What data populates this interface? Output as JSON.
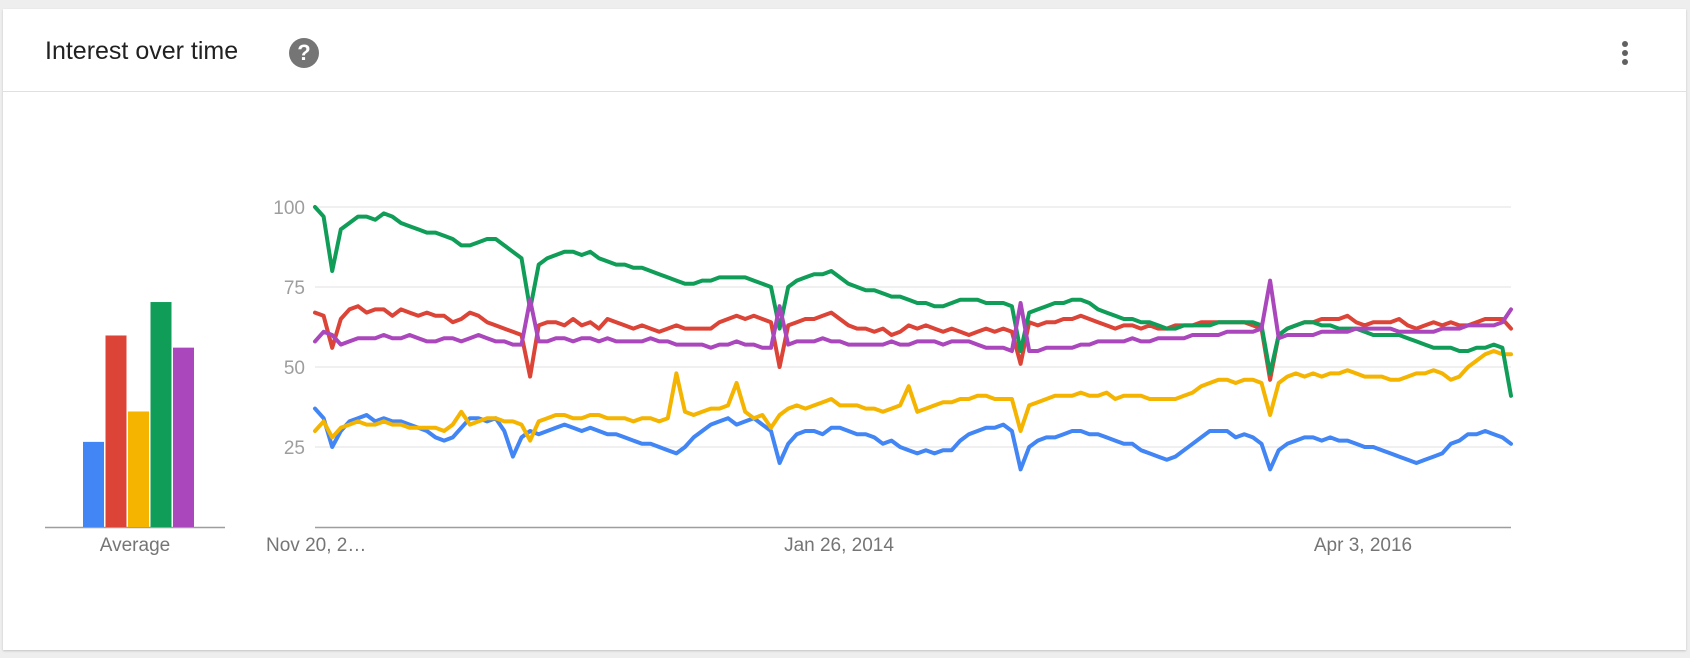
{
  "card": {
    "title": "Interest over time",
    "help_icon_glyph": "?",
    "help_icon": "help-circle-icon",
    "menu_icon": "more-vert-icon"
  },
  "average_chart": {
    "type": "bar",
    "label": "Average",
    "values": [
      28,
      63,
      38,
      74,
      59
    ],
    "colors": [
      "#4285f4",
      "#db4437",
      "#f4b400",
      "#0f9d58",
      "#ab47bc"
    ]
  },
  "chart_data": {
    "type": "line",
    "title": "",
    "xlabel": "",
    "ylabel": "",
    "ylim": [
      0,
      100
    ],
    "yticks": [
      25,
      50,
      75,
      100
    ],
    "x_tick_labels": [
      "Nov 20, 2…",
      "Jan 26, 2014",
      "Apr 3, 2016"
    ],
    "grid": true,
    "series": [
      {
        "color": "#4285f4",
        "values": [
          37,
          34,
          25,
          30,
          33,
          34,
          35,
          33,
          34,
          33,
          33,
          32,
          31,
          30,
          28,
          27,
          28,
          31,
          34,
          34,
          33,
          34,
          30,
          22,
          28,
          30,
          29,
          30,
          31,
          32,
          31,
          30,
          31,
          30,
          29,
          29,
          28,
          27,
          26,
          26,
          25,
          24,
          23,
          25,
          28,
          30,
          32,
          33,
          34,
          32,
          33,
          34,
          32,
          30,
          20,
          26,
          29,
          30,
          30,
          29,
          31,
          31,
          30,
          29,
          29,
          28,
          26,
          27,
          25,
          24,
          23,
          24,
          23,
          24,
          24,
          27,
          29,
          30,
          31,
          31,
          32,
          30,
          18,
          25,
          27,
          28,
          28,
          29,
          30,
          30,
          29,
          29,
          28,
          27,
          26,
          26,
          24,
          23,
          22,
          21,
          22,
          24,
          26,
          28,
          30,
          30,
          30,
          28,
          29,
          28,
          26,
          18,
          24,
          26,
          27,
          28,
          28,
          27,
          28,
          27,
          27,
          26,
          25,
          25,
          24,
          23,
          22,
          21,
          20,
          21,
          22,
          23,
          26,
          27,
          29,
          29,
          30,
          29,
          28,
          26
        ]
      },
      {
        "color": "#db4437",
        "values": [
          67,
          66,
          56,
          65,
          68,
          69,
          67,
          68,
          68,
          66,
          68,
          67,
          66,
          67,
          66,
          66,
          64,
          65,
          67,
          66,
          64,
          63,
          62,
          61,
          60,
          47,
          63,
          64,
          64,
          63,
          65,
          63,
          64,
          62,
          65,
          64,
          63,
          62,
          63,
          62,
          61,
          62,
          63,
          62,
          62,
          62,
          62,
          64,
          65,
          66,
          65,
          66,
          65,
          64,
          50,
          63,
          64,
          65,
          65,
          66,
          67,
          65,
          63,
          62,
          62,
          61,
          62,
          60,
          61,
          63,
          62,
          63,
          62,
          61,
          62,
          61,
          60,
          61,
          62,
          61,
          62,
          61,
          51,
          64,
          63,
          64,
          64,
          65,
          65,
          66,
          65,
          64,
          63,
          62,
          63,
          63,
          62,
          63,
          62,
          62,
          63,
          63,
          63,
          64,
          64,
          64,
          64,
          64,
          64,
          63,
          62,
          46,
          60,
          62,
          63,
          64,
          64,
          65,
          65,
          65,
          66,
          64,
          63,
          64,
          64,
          64,
          65,
          63,
          62,
          63,
          64,
          63,
          64,
          63,
          63,
          64,
          65,
          65,
          65,
          62
        ]
      },
      {
        "color": "#f4b400",
        "values": [
          30,
          33,
          28,
          31,
          32,
          33,
          32,
          32,
          33,
          32,
          32,
          31,
          31,
          31,
          31,
          30,
          32,
          36,
          32,
          33,
          34,
          34,
          33,
          33,
          32,
          27,
          33,
          34,
          35,
          35,
          34,
          34,
          35,
          35,
          34,
          34,
          34,
          33,
          34,
          34,
          33,
          34,
          48,
          36,
          35,
          36,
          37,
          37,
          38,
          45,
          36,
          34,
          35,
          31,
          35,
          37,
          38,
          37,
          38,
          39,
          40,
          38,
          38,
          38,
          37,
          37,
          36,
          37,
          38,
          44,
          36,
          37,
          38,
          39,
          39,
          40,
          40,
          41,
          41,
          40,
          40,
          40,
          30,
          38,
          39,
          40,
          41,
          41,
          41,
          42,
          41,
          41,
          42,
          40,
          41,
          41,
          41,
          40,
          40,
          40,
          40,
          41,
          42,
          44,
          45,
          46,
          46,
          45,
          46,
          46,
          45,
          35,
          45,
          47,
          48,
          47,
          48,
          47,
          48,
          48,
          49,
          48,
          47,
          47,
          47,
          46,
          46,
          47,
          48,
          48,
          49,
          48,
          46,
          47,
          50,
          52,
          54,
          55,
          54,
          54
        ]
      },
      {
        "color": "#0f9d58",
        "values": [
          100,
          97,
          80,
          93,
          95,
          97,
          97,
          96,
          98,
          97,
          95,
          94,
          93,
          92,
          92,
          91,
          90,
          88,
          88,
          89,
          90,
          90,
          88,
          86,
          84,
          68,
          82,
          84,
          85,
          86,
          86,
          85,
          86,
          84,
          83,
          82,
          82,
          81,
          81,
          80,
          79,
          78,
          77,
          76,
          76,
          77,
          77,
          78,
          78,
          78,
          78,
          77,
          76,
          75,
          62,
          75,
          77,
          78,
          79,
          79,
          80,
          78,
          76,
          75,
          74,
          74,
          73,
          72,
          72,
          71,
          70,
          70,
          69,
          69,
          70,
          71,
          71,
          71,
          70,
          70,
          70,
          69,
          55,
          67,
          68,
          69,
          70,
          70,
          71,
          71,
          70,
          68,
          67,
          66,
          65,
          65,
          64,
          64,
          63,
          62,
          62,
          63,
          63,
          63,
          63,
          64,
          64,
          64,
          64,
          64,
          63,
          48,
          60,
          62,
          63,
          64,
          64,
          63,
          63,
          62,
          62,
          62,
          61,
          60,
          60,
          60,
          60,
          59,
          58,
          57,
          56,
          56,
          56,
          55,
          55,
          56,
          56,
          57,
          56,
          41
        ]
      },
      {
        "color": "#ab47bc",
        "values": [
          58,
          61,
          60,
          57,
          58,
          59,
          59,
          59,
          60,
          59,
          59,
          60,
          59,
          58,
          58,
          59,
          59,
          58,
          59,
          60,
          59,
          58,
          58,
          57,
          57,
          71,
          58,
          58,
          59,
          59,
          58,
          59,
          59,
          58,
          59,
          58,
          58,
          58,
          58,
          59,
          58,
          58,
          57,
          57,
          57,
          57,
          56,
          57,
          57,
          58,
          57,
          57,
          56,
          56,
          69,
          57,
          58,
          58,
          58,
          59,
          58,
          58,
          57,
          57,
          57,
          57,
          57,
          58,
          57,
          57,
          58,
          58,
          58,
          57,
          58,
          58,
          58,
          57,
          56,
          56,
          56,
          55,
          70,
          55,
          55,
          56,
          56,
          56,
          56,
          57,
          57,
          58,
          58,
          58,
          58,
          59,
          58,
          58,
          59,
          59,
          59,
          59,
          60,
          60,
          60,
          60,
          61,
          61,
          61,
          61,
          62,
          77,
          59,
          60,
          60,
          60,
          60,
          61,
          61,
          61,
          61,
          62,
          62,
          62,
          62,
          62,
          61,
          61,
          61,
          61,
          61,
          62,
          62,
          62,
          63,
          63,
          63,
          63,
          64,
          68
        ]
      }
    ]
  }
}
